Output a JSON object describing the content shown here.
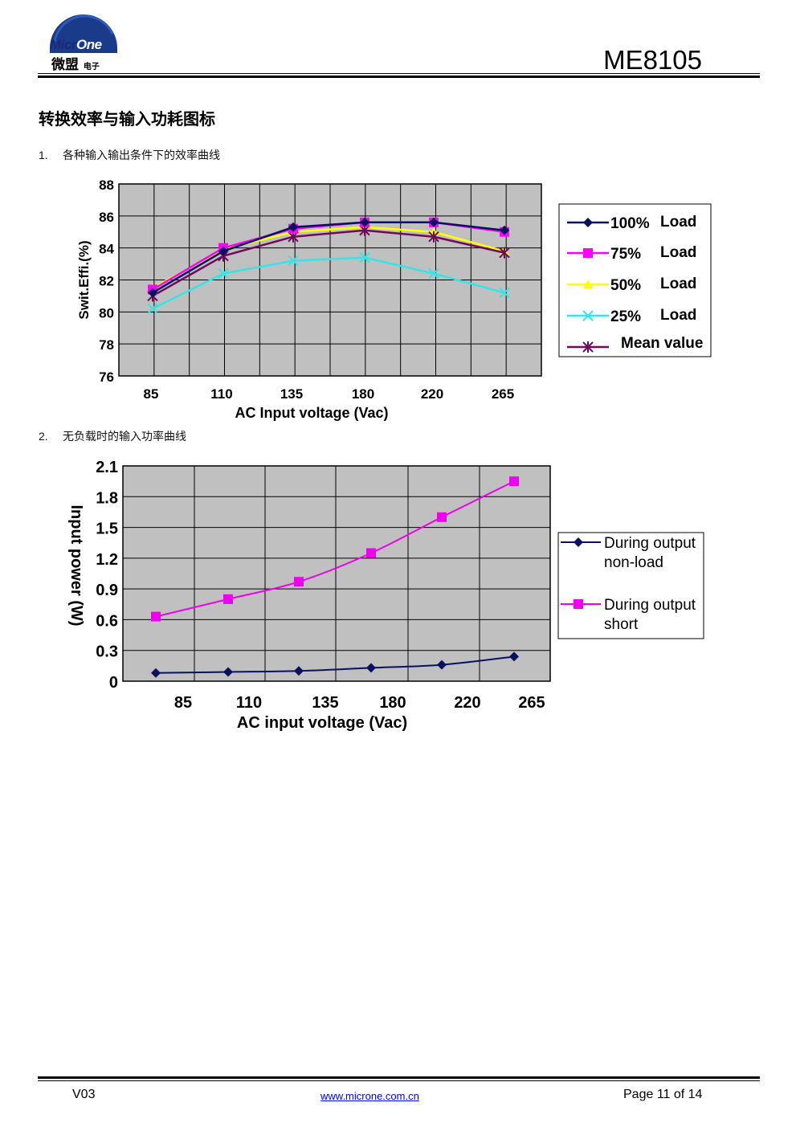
{
  "header": {
    "logo_en_1": "Micr",
    "logo_en_2": "One",
    "logo_cn": "微盟",
    "logo_cn_small": "电子",
    "doc_id": "ME8105"
  },
  "section_title": "转换效率与输入功耗图标",
  "items": [
    {
      "num": "1.",
      "text": "各种输入输出条件下的效率曲线"
    },
    {
      "num": "2.",
      "text": "无负载时的输入功率曲线"
    }
  ],
  "footer": {
    "version": "V03",
    "url": "www.microne.com.cn",
    "page": "Page 11 of 14"
  },
  "colors": {
    "plot_bg": "#c0c0c0",
    "s100": "#0a1060",
    "s75": "#ff00ff",
    "s50": "#ffff00",
    "s25": "#33e5e5",
    "mean": "#6e0a5a",
    "nonload": "#0a1060",
    "short": "#ee00ee"
  },
  "chart_data": [
    {
      "type": "line",
      "categories": [
        "85",
        "110",
        "135",
        "180",
        "220",
        "265"
      ],
      "xlabel": "AC Input voltage (Vac)",
      "ylabel": "Swit.Effi.(%)",
      "ylim": [
        76,
        88
      ],
      "yticks": [
        "88",
        "86",
        "84",
        "82",
        "80",
        "78",
        "76"
      ],
      "grid": true,
      "legend": "right",
      "series": [
        {
          "name": "100%",
          "name_suffix": "Load",
          "marker": "diamond",
          "values": [
            81.2,
            83.8,
            85.3,
            85.6,
            85.6,
            85.1
          ]
        },
        {
          "name": "75%",
          "name_suffix": "Load",
          "marker": "square",
          "values": [
            81.4,
            84.0,
            85.2,
            85.6,
            85.6,
            85.0
          ]
        },
        {
          "name": "50%",
          "name_suffix": "Load",
          "marker": "triangle",
          "values": [
            81.5,
            83.9,
            85.0,
            85.3,
            85.0,
            83.8
          ]
        },
        {
          "name": "25%",
          "name_suffix": "Load",
          "marker": "x",
          "values": [
            80.2,
            82.4,
            83.2,
            83.4,
            82.4,
            81.2
          ]
        },
        {
          "name": "Mean value",
          "name_suffix": "",
          "marker": "star",
          "values": [
            81.0,
            83.5,
            84.7,
            85.1,
            84.7,
            83.7
          ]
        }
      ]
    },
    {
      "type": "line",
      "categories": [
        "85",
        "110",
        "135",
        "180",
        "220",
        "265"
      ],
      "xlabel": "AC input voltage (Vac)",
      "ylabel": "Input power (W)",
      "ylim": [
        0,
        2.1
      ],
      "yticks": [
        "2.1",
        "1.8",
        "1.5",
        "1.2",
        "0.9",
        "0.6",
        "0.3",
        "0"
      ],
      "grid": true,
      "legend": "right",
      "series": [
        {
          "name": "During output non-load",
          "name_line1": "During output",
          "name_line2": "non-load",
          "marker": "diamond",
          "values": [
            0.08,
            0.09,
            0.1,
            0.13,
            0.16,
            0.24
          ]
        },
        {
          "name": "During output short",
          "name_line1": "During output",
          "name_line2": "short",
          "marker": "square",
          "values": [
            0.63,
            0.8,
            0.97,
            1.25,
            1.6,
            1.95
          ]
        }
      ]
    }
  ]
}
